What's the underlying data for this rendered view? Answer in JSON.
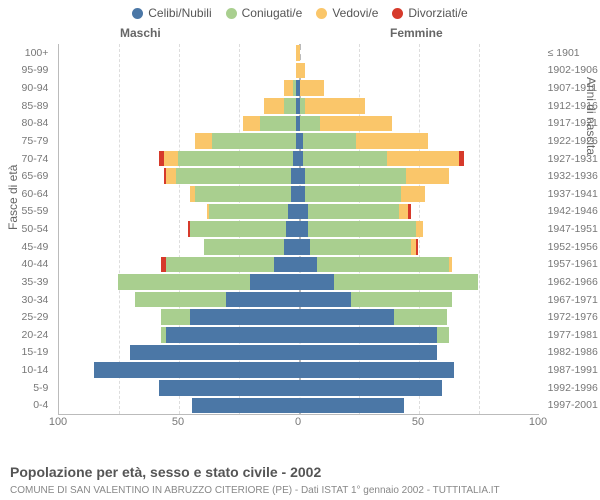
{
  "chart": {
    "type": "population-pyramid",
    "legend": [
      {
        "label": "Celibi/Nubili",
        "color": "#4b77a6"
      },
      {
        "label": "Coniugati/e",
        "color": "#a9cf8f"
      },
      {
        "label": "Vedovi/e",
        "color": "#fac66a"
      },
      {
        "label": "Divorziati/e",
        "color": "#d63a2b"
      }
    ],
    "male_label": "Maschi",
    "female_label": "Femmine",
    "left_axis_label": "Fasce di età",
    "right_axis_label": "Anni di nascita",
    "xlim": 100,
    "xticks": [
      100,
      50,
      0,
      50,
      100
    ],
    "background_color": "#ffffff",
    "grid_color": "#dddddd",
    "center_line_color": "#bbbbbb",
    "label_fontsize": 11,
    "rows": [
      {
        "age": "100+",
        "year": "≤ 1901",
        "m": [
          0,
          0,
          1,
          0
        ],
        "f": [
          0,
          0,
          1,
          0
        ]
      },
      {
        "age": "95-99",
        "year": "1902-1906",
        "m": [
          0,
          0,
          1,
          0
        ],
        "f": [
          0,
          0,
          3,
          0
        ]
      },
      {
        "age": "90-94",
        "year": "1907-1911",
        "m": [
          1,
          1,
          4,
          0
        ],
        "f": [
          1,
          0,
          10,
          0
        ]
      },
      {
        "age": "85-89",
        "year": "1912-1916",
        "m": [
          1,
          5,
          8,
          0
        ],
        "f": [
          1,
          2,
          25,
          0
        ]
      },
      {
        "age": "80-84",
        "year": "1917-1921",
        "m": [
          1,
          15,
          7,
          0
        ],
        "f": [
          1,
          8,
          30,
          0
        ]
      },
      {
        "age": "75-79",
        "year": "1922-1926",
        "m": [
          1,
          35,
          7,
          0
        ],
        "f": [
          2,
          22,
          30,
          0
        ]
      },
      {
        "age": "70-74",
        "year": "1927-1931",
        "m": [
          2,
          48,
          6,
          2
        ],
        "f": [
          2,
          35,
          30,
          2
        ]
      },
      {
        "age": "65-69",
        "year": "1932-1936",
        "m": [
          3,
          48,
          4,
          1
        ],
        "f": [
          3,
          42,
          18,
          0
        ]
      },
      {
        "age": "60-64",
        "year": "1937-1941",
        "m": [
          3,
          40,
          2,
          0
        ],
        "f": [
          3,
          40,
          10,
          0
        ]
      },
      {
        "age": "55-59",
        "year": "1942-1946",
        "m": [
          4,
          33,
          1,
          0
        ],
        "f": [
          4,
          38,
          4,
          1
        ]
      },
      {
        "age": "50-54",
        "year": "1947-1951",
        "m": [
          5,
          40,
          0,
          1
        ],
        "f": [
          4,
          45,
          3,
          0
        ]
      },
      {
        "age": "45-49",
        "year": "1952-1956",
        "m": [
          6,
          33,
          0,
          0
        ],
        "f": [
          5,
          42,
          2,
          1
        ]
      },
      {
        "age": "40-44",
        "year": "1957-1961",
        "m": [
          10,
          45,
          0,
          2
        ],
        "f": [
          8,
          55,
          1,
          0
        ]
      },
      {
        "age": "35-39",
        "year": "1962-1966",
        "m": [
          20,
          55,
          0,
          0
        ],
        "f": [
          15,
          60,
          0,
          0
        ]
      },
      {
        "age": "30-34",
        "year": "1967-1971",
        "m": [
          30,
          38,
          0,
          0
        ],
        "f": [
          22,
          42,
          0,
          0
        ]
      },
      {
        "age": "25-29",
        "year": "1972-1976",
        "m": [
          45,
          12,
          0,
          0
        ],
        "f": [
          40,
          22,
          0,
          0
        ]
      },
      {
        "age": "20-24",
        "year": "1977-1981",
        "m": [
          55,
          2,
          0,
          0
        ],
        "f": [
          58,
          5,
          0,
          0
        ]
      },
      {
        "age": "15-19",
        "year": "1982-1986",
        "m": [
          70,
          0,
          0,
          0
        ],
        "f": [
          58,
          0,
          0,
          0
        ]
      },
      {
        "age": "10-14",
        "year": "1987-1991",
        "m": [
          85,
          0,
          0,
          0
        ],
        "f": [
          65,
          0,
          0,
          0
        ]
      },
      {
        "age": "5-9",
        "year": "1992-1996",
        "m": [
          58,
          0,
          0,
          0
        ],
        "f": [
          60,
          0,
          0,
          0
        ]
      },
      {
        "age": "0-4",
        "year": "1997-2001",
        "m": [
          44,
          0,
          0,
          0
        ],
        "f": [
          44,
          0,
          0,
          0
        ]
      }
    ]
  },
  "title": "Popolazione per età, sesso e stato civile - 2002",
  "subtitle": "COMUNE DI SAN VALENTINO IN ABRUZZO CITERIORE (PE) - Dati ISTAT 1° gennaio 2002 - TUTTITALIA.IT"
}
